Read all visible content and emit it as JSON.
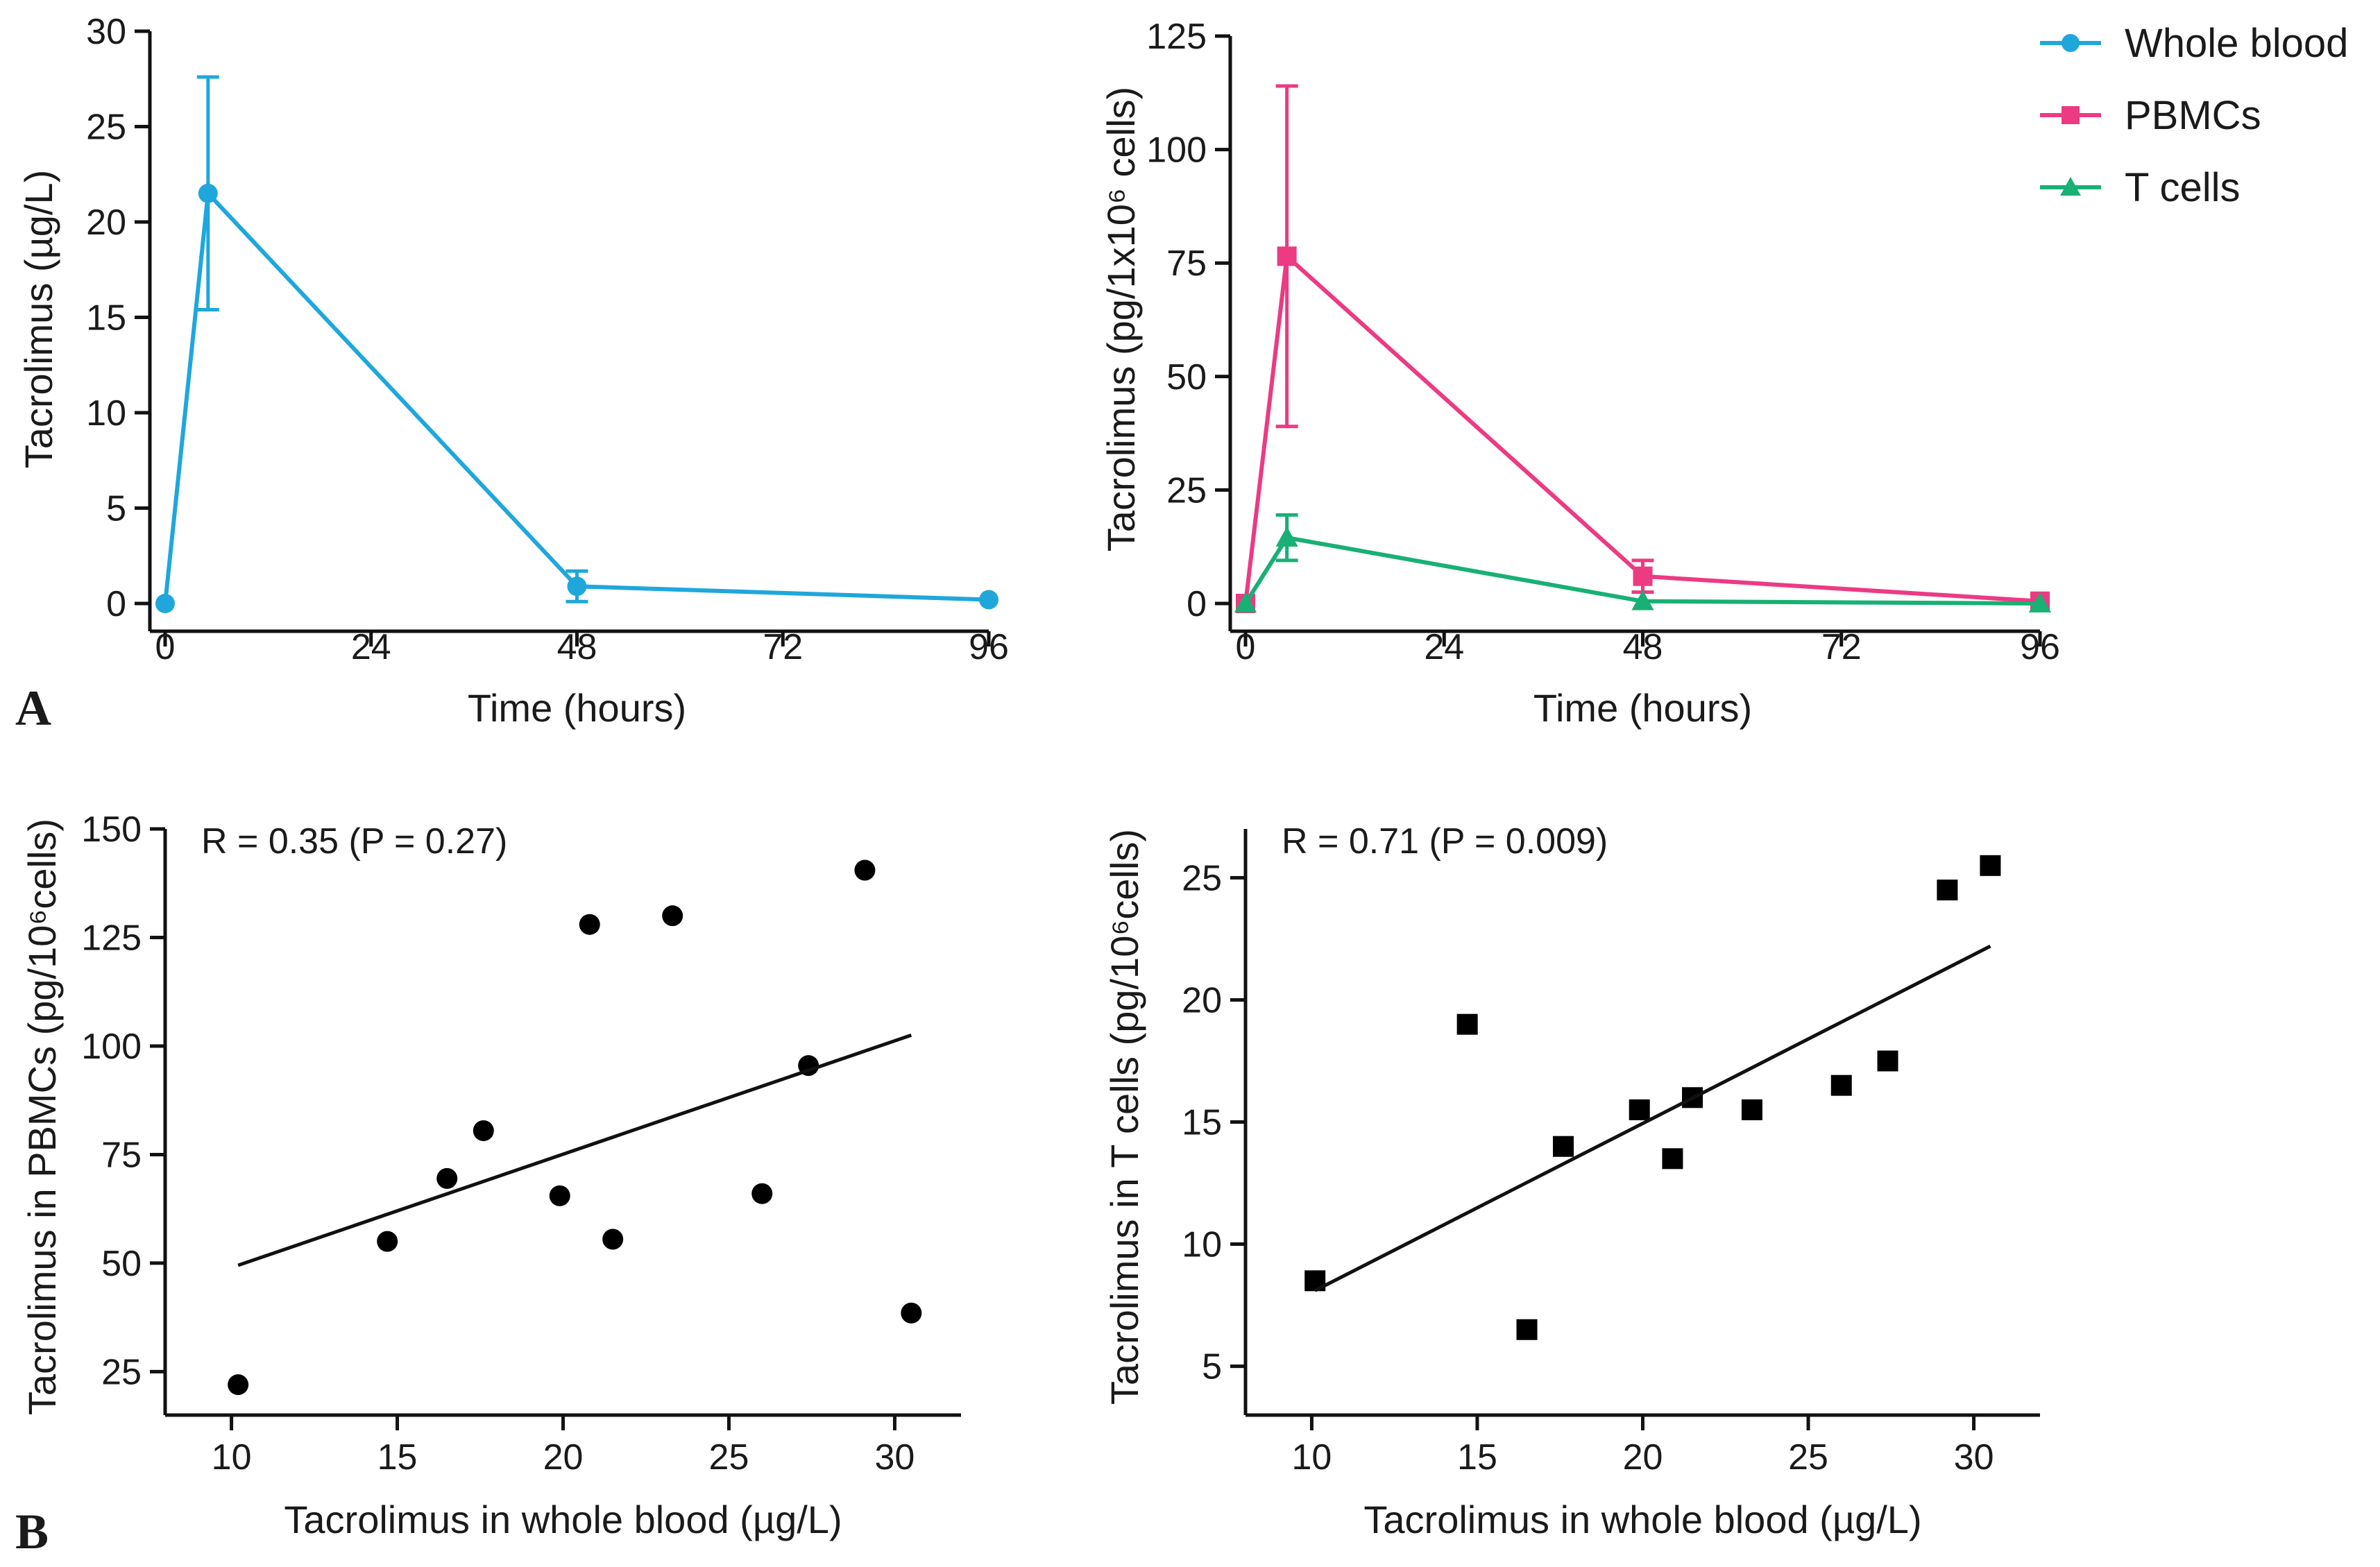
{
  "figure": {
    "panel_labels": [
      "A",
      "B"
    ]
  },
  "chart_data": [
    {
      "type": "line",
      "xlabel": "Time (hours)",
      "ylabel": "Tacrolimus (µg/L)",
      "xlim": [
        0,
        96
      ],
      "ylim": [
        0,
        30
      ],
      "xticks": [
        0,
        24,
        48,
        72,
        96
      ],
      "yticks": [
        0,
        5,
        10,
        15,
        20,
        25,
        30
      ],
      "series": [
        {
          "name": "Whole blood",
          "color": "#1fa7dc",
          "marker": "circle",
          "x": [
            0,
            5,
            48,
            96
          ],
          "y": [
            0,
            21.5,
            0.9,
            0.2
          ],
          "err": [
            0,
            6.1,
            0.8,
            0
          ]
        }
      ]
    },
    {
      "type": "line",
      "xlabel": "Time (hours)",
      "ylabel": "Tacrolimus (pg/1x10⁶ cells)",
      "xlim": [
        0,
        96
      ],
      "ylim": [
        0,
        125
      ],
      "xticks": [
        0,
        24,
        48,
        72,
        96
      ],
      "yticks": [
        0,
        25,
        50,
        75,
        100,
        125
      ],
      "legend": "top-right",
      "series": [
        {
          "name": "Whole blood",
          "color": "#1fa7dc",
          "marker": "circle",
          "legend_only": true,
          "x": [],
          "y": [],
          "err": []
        },
        {
          "name": "PBMCs",
          "color": "#ec3a83",
          "marker": "square",
          "x": [
            0,
            5,
            48,
            96
          ],
          "y": [
            0,
            76.5,
            6,
            0.5
          ],
          "err": [
            0,
            37.5,
            3.5,
            0
          ]
        },
        {
          "name": "T cells",
          "color": "#18b074",
          "marker": "triangle",
          "x": [
            0,
            5,
            48,
            96
          ],
          "y": [
            0,
            14.5,
            0.5,
            0
          ],
          "err": [
            0,
            5,
            0,
            0
          ]
        }
      ]
    },
    {
      "type": "scatter",
      "xlabel": "Tacrolimus in whole blood (µg/L)",
      "ylabel": "Tacrolimus in PBMCs (pg/10⁶cells)",
      "annotation": "R = 0.35 (P = 0.27)",
      "xlim": [
        8,
        32
      ],
      "ylim": [
        15,
        150
      ],
      "xticks": [
        10,
        15,
        20,
        25,
        30
      ],
      "yticks": [
        25,
        50,
        75,
        100,
        125,
        150
      ],
      "marker": "circle",
      "color": "#000000",
      "points": [
        [
          10.2,
          22
        ],
        [
          14.7,
          55
        ],
        [
          16.5,
          69.5
        ],
        [
          17.6,
          80.5
        ],
        [
          19.9,
          65.5
        ],
        [
          20.8,
          128
        ],
        [
          21.5,
          55.5
        ],
        [
          23.3,
          130
        ],
        [
          26,
          66
        ],
        [
          27.4,
          95.5
        ],
        [
          29.1,
          140.5
        ],
        [
          30.5,
          38.5
        ]
      ],
      "regression": {
        "x": [
          10.2,
          30.5
        ],
        "y": [
          49.5,
          102.5
        ]
      }
    },
    {
      "type": "scatter",
      "xlabel": "Tacrolimus in whole blood (µg/L)",
      "ylabel": "Tacrolimus in T cells (pg/10⁶cells)",
      "annotation": "R = 0.71 (P = 0.009)",
      "xlim": [
        8,
        32
      ],
      "ylim": [
        3,
        27
      ],
      "xticks": [
        10,
        15,
        20,
        25,
        30
      ],
      "yticks": [
        5,
        10,
        15,
        20,
        25
      ],
      "marker": "square",
      "color": "#000000",
      "points": [
        [
          10.1,
          8.5
        ],
        [
          14.7,
          19
        ],
        [
          16.5,
          6.5
        ],
        [
          17.6,
          14
        ],
        [
          19.9,
          15.5
        ],
        [
          20.9,
          13.5
        ],
        [
          21.5,
          16
        ],
        [
          23.3,
          15.5
        ],
        [
          26,
          16.5
        ],
        [
          27.4,
          17.5
        ],
        [
          29.2,
          24.5
        ],
        [
          30.5,
          25.5
        ]
      ],
      "regression": {
        "x": [
          10.1,
          30.5
        ],
        "y": [
          8.1,
          22.2
        ]
      }
    }
  ]
}
